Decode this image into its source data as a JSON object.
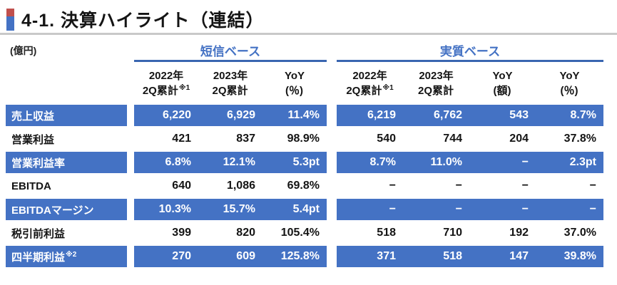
{
  "title": "4-1. 決算ハイライト（連結）",
  "unit_label": "(億円)",
  "colors": {
    "row-blue": "#4472c4",
    "group-blue": "#4472c4",
    "underline-blue": "#3a66b0",
    "marker-red": "#c0504d",
    "marker-blue": "#4472c4",
    "divider-gray": "#c9c9c9"
  },
  "table": {
    "groups": [
      {
        "label": "短信ベース"
      },
      {
        "label": "実質ベース"
      }
    ],
    "columns": [
      {
        "top": "2022年",
        "bottom": "2Q累計",
        "sup": "※1"
      },
      {
        "top": "2023年",
        "bottom": "2Q累計",
        "sup": ""
      },
      {
        "top": "YoY",
        "bottom": "(％)",
        "sup": ""
      },
      {
        "top": "2022年",
        "bottom": "2Q累計",
        "sup": "※1"
      },
      {
        "top": "2023年",
        "bottom": "2Q累計",
        "sup": ""
      },
      {
        "top": "YoY",
        "bottom": "(額)",
        "sup": ""
      },
      {
        "top": "YoY",
        "bottom": "(％)",
        "sup": ""
      }
    ],
    "rows": [
      {
        "label": "売上収益",
        "sup": "",
        "highlight": true,
        "values": [
          "6,220",
          "6,929",
          "11.4%",
          "6,219",
          "6,762",
          "543",
          "8.7%"
        ]
      },
      {
        "label": "営業利益",
        "sup": "",
        "highlight": false,
        "values": [
          "421",
          "837",
          "98.9%",
          "540",
          "744",
          "204",
          "37.8%"
        ]
      },
      {
        "label": "営業利益率",
        "sup": "",
        "highlight": true,
        "values": [
          "6.8%",
          "12.1%",
          "5.3pt",
          "8.7%",
          "11.0%",
          "−",
          "2.3pt"
        ]
      },
      {
        "label": "EBITDA",
        "sup": "",
        "highlight": false,
        "values": [
          "640",
          "1,086",
          "69.8%",
          "−",
          "−",
          "−",
          "−"
        ]
      },
      {
        "label": "EBITDAマージン",
        "sup": "",
        "highlight": true,
        "values": [
          "10.3%",
          "15.7%",
          "5.4pt",
          "−",
          "−",
          "−",
          "−"
        ]
      },
      {
        "label": "税引前利益",
        "sup": "",
        "highlight": false,
        "values": [
          "399",
          "820",
          "105.4%",
          "518",
          "710",
          "192",
          "37.0%"
        ]
      },
      {
        "label": "四半期利益",
        "sup": "※2",
        "highlight": true,
        "values": [
          "270",
          "609",
          "125.8%",
          "371",
          "518",
          "147",
          "39.8%"
        ]
      }
    ]
  }
}
